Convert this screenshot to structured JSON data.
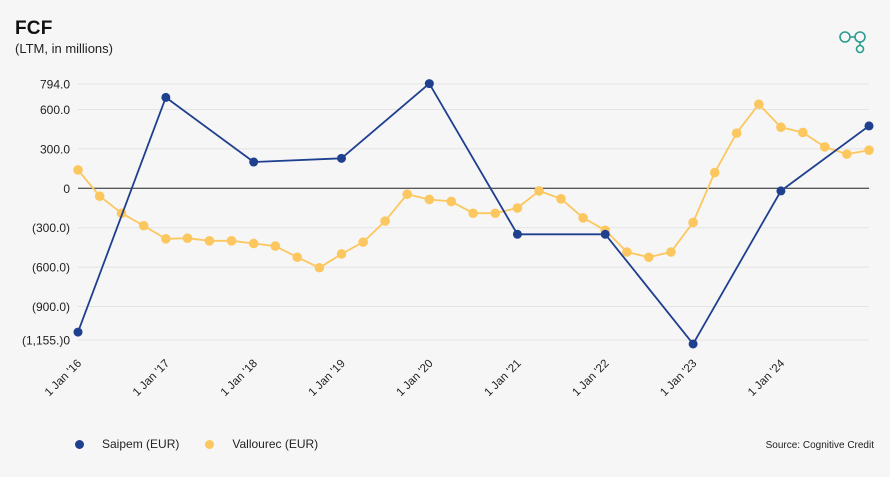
{
  "header": {
    "title": "FCF",
    "subtitle": "(LTM, in millions)"
  },
  "legend": {
    "items": [
      {
        "label": "Saipem (EUR)",
        "color": "#1f3f8f"
      },
      {
        "label": "Vallourec (EUR)",
        "color": "#fcc75e"
      }
    ]
  },
  "source": "Source: Cognitive Credit",
  "logo_icon": "cognitive-credit-logo-icon",
  "chart_data": {
    "type": "line",
    "title": "FCF",
    "subtitle": "(LTM, in millions)",
    "ylim": [
      -1155,
      794
    ],
    "y_ticks": [
      {
        "value": 794,
        "label": "794.0"
      },
      {
        "value": 600,
        "label": "600.0"
      },
      {
        "value": 300,
        "label": "300.0"
      },
      {
        "value": 0,
        "label": "0"
      },
      {
        "value": -300,
        "label": "(300.0)"
      },
      {
        "value": -600,
        "label": "(600.0)"
      },
      {
        "value": -900,
        "label": "(900.0)"
      },
      {
        "value": -1155,
        "label": "(1,155.)0"
      }
    ],
    "xlim": [
      "2016-01-01",
      "2024-12-31"
    ],
    "x_ticks": [
      {
        "date": "2016-01-01",
        "label": "1 Jan '16"
      },
      {
        "date": "2017-01-01",
        "label": "1 Jan '17"
      },
      {
        "date": "2018-01-01",
        "label": "1 Jan '18"
      },
      {
        "date": "2019-01-01",
        "label": "1 Jan '19"
      },
      {
        "date": "2020-01-01",
        "label": "1 Jan '20"
      },
      {
        "date": "2021-01-01",
        "label": "1 Jan '21"
      },
      {
        "date": "2022-01-01",
        "label": "1 Jan '22"
      },
      {
        "date": "2023-01-01",
        "label": "1 Jan '23"
      },
      {
        "date": "2024-01-01",
        "label": "1 Jan '24"
      }
    ],
    "grid": true,
    "legend_position": "bottom-left",
    "series": [
      {
        "name": "Saipem (EUR)",
        "color": "#1f3f8f",
        "points": [
          {
            "x": "2016-01-01",
            "y": -1095
          },
          {
            "x": "2016-12-31",
            "y": 692
          },
          {
            "x": "2017-12-31",
            "y": 200
          },
          {
            "x": "2018-12-31",
            "y": 228
          },
          {
            "x": "2019-12-31",
            "y": 797
          },
          {
            "x": "2020-12-31",
            "y": -350
          },
          {
            "x": "2021-12-31",
            "y": -350
          },
          {
            "x": "2022-12-31",
            "y": -1185
          },
          {
            "x": "2023-12-31",
            "y": -20
          },
          {
            "x": "2024-12-31",
            "y": 475
          }
        ]
      },
      {
        "name": "Vallourec (EUR)",
        "color": "#fcc75e",
        "points": [
          {
            "x": "2016-01-01",
            "y": 140
          },
          {
            "x": "2016-03-31",
            "y": -60
          },
          {
            "x": "2016-06-30",
            "y": -190
          },
          {
            "x": "2016-09-30",
            "y": -285
          },
          {
            "x": "2016-12-31",
            "y": -385
          },
          {
            "x": "2017-03-31",
            "y": -380
          },
          {
            "x": "2017-06-30",
            "y": -400
          },
          {
            "x": "2017-09-30",
            "y": -400
          },
          {
            "x": "2017-12-31",
            "y": -420
          },
          {
            "x": "2018-03-31",
            "y": -440
          },
          {
            "x": "2018-06-30",
            "y": -525
          },
          {
            "x": "2018-09-30",
            "y": -605
          },
          {
            "x": "2018-12-31",
            "y": -500
          },
          {
            "x": "2019-03-31",
            "y": -410
          },
          {
            "x": "2019-06-30",
            "y": -250
          },
          {
            "x": "2019-09-30",
            "y": -45
          },
          {
            "x": "2019-12-31",
            "y": -85
          },
          {
            "x": "2020-03-31",
            "y": -100
          },
          {
            "x": "2020-06-30",
            "y": -190
          },
          {
            "x": "2020-09-30",
            "y": -190
          },
          {
            "x": "2020-12-31",
            "y": -150
          },
          {
            "x": "2021-03-31",
            "y": -20
          },
          {
            "x": "2021-06-30",
            "y": -80
          },
          {
            "x": "2021-09-30",
            "y": -225
          },
          {
            "x": "2021-12-31",
            "y": -320
          },
          {
            "x": "2022-03-31",
            "y": -485
          },
          {
            "x": "2022-06-30",
            "y": -525
          },
          {
            "x": "2022-09-30",
            "y": -485
          },
          {
            "x": "2022-12-31",
            "y": -260
          },
          {
            "x": "2023-03-31",
            "y": 120
          },
          {
            "x": "2023-06-30",
            "y": 420
          },
          {
            "x": "2023-09-30",
            "y": 640
          },
          {
            "x": "2023-12-31",
            "y": 465
          },
          {
            "x": "2024-03-31",
            "y": 425
          },
          {
            "x": "2024-06-30",
            "y": 315
          },
          {
            "x": "2024-09-30",
            "y": 260
          },
          {
            "x": "2024-12-31",
            "y": 290
          }
        ]
      }
    ]
  }
}
